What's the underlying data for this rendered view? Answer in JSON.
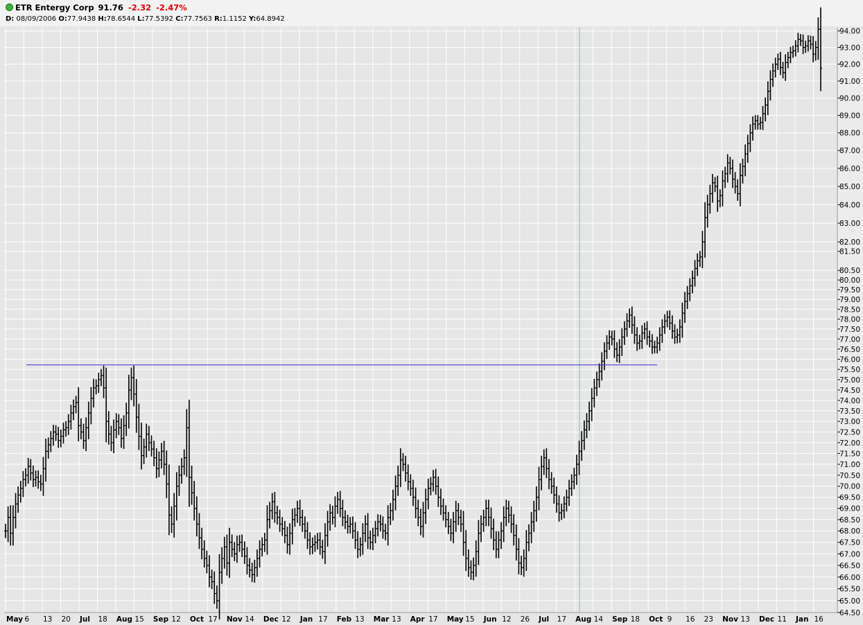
{
  "header": {
    "symbol_name": "ETR Entergy Corp",
    "last_price": "91.76",
    "change": "-2.32",
    "change_pct": "-2.47%",
    "ohlc": {
      "date_label": "D:",
      "date": "08/09/2006",
      "open_label": "O:",
      "open": "77.9438",
      "high_label": "H:",
      "high": "78.6544",
      "low_label": "L:",
      "low": "77.5392",
      "close_label": "C:",
      "close": "77.7563",
      "r_label": "R:",
      "r": "1.1152",
      "y_label": "Y:",
      "y": "64.8942"
    }
  },
  "colors": {
    "background": "#e6e6e6",
    "grid": "#ffffff",
    "candles": "#000000",
    "trendline": "#3b2ccc",
    "cursor_line": "#9bb0b0",
    "change_negative": "#e00000"
  },
  "chart_data": {
    "type": "line",
    "y_scale": "log",
    "ylim": [
      64.5,
      94.2
    ],
    "y_ticks": [
      "94.00",
      "93.00",
      "92.00",
      "91.00",
      "90.00",
      "89.00",
      "88.00",
      "87.00",
      "86.00",
      "85.00",
      "84.00",
      "83.00",
      "82.00",
      "81.50",
      "80.50",
      "80.00",
      "79.50",
      "79.00",
      "78.50",
      "78.00",
      "77.50",
      "77.00",
      "76.50",
      "76.00",
      "75.50",
      "75.00",
      "74.50",
      "74.00",
      "73.50",
      "73.00",
      "72.50",
      "72.00",
      "71.50",
      "71.00",
      "70.50",
      "70.00",
      "69.50",
      "69.00",
      "68.50",
      "68.00",
      "67.50",
      "67.00",
      "66.50",
      "66.00",
      "65.50",
      "65.00",
      "64.50"
    ],
    "x_labels": [
      {
        "t": "May",
        "bold": true
      },
      {
        "t": "6",
        "bold": false
      },
      {
        "t": "13",
        "bold": false
      },
      {
        "t": "20",
        "bold": false
      },
      {
        "t": "Jul",
        "bold": true
      },
      {
        "t": "18",
        "bold": false
      },
      {
        "t": "Aug",
        "bold": true
      },
      {
        "t": "15",
        "bold": false
      },
      {
        "t": "Sep",
        "bold": true
      },
      {
        "t": "12",
        "bold": false
      },
      {
        "t": "Oct",
        "bold": true
      },
      {
        "t": "17",
        "bold": false
      },
      {
        "t": "Nov",
        "bold": true
      },
      {
        "t": "14",
        "bold": false
      },
      {
        "t": "Dec",
        "bold": true
      },
      {
        "t": "12",
        "bold": false
      },
      {
        "t": "Jan",
        "bold": true
      },
      {
        "t": "17",
        "bold": false
      },
      {
        "t": "Feb",
        "bold": true
      },
      {
        "t": "13",
        "bold": false
      },
      {
        "t": "Mar",
        "bold": true
      },
      {
        "t": "13",
        "bold": false
      },
      {
        "t": "Apr",
        "bold": true
      },
      {
        "t": "17",
        "bold": false
      },
      {
        "t": "May",
        "bold": true
      },
      {
        "t": "15",
        "bold": false
      },
      {
        "t": "Jun",
        "bold": true
      },
      {
        "t": "12",
        "bold": false
      },
      {
        "t": "26",
        "bold": false
      },
      {
        "t": "Jul",
        "bold": true
      },
      {
        "t": "17",
        "bold": false
      },
      {
        "t": "Aug",
        "bold": true
      },
      {
        "t": "14",
        "bold": false
      },
      {
        "t": "Sep",
        "bold": true
      },
      {
        "t": "18",
        "bold": false
      },
      {
        "t": "Oct",
        "bold": true
      },
      {
        "t": "9",
        "bold": false
      },
      {
        "t": "16",
        "bold": false
      },
      {
        "t": "23",
        "bold": false
      },
      {
        "t": "Nov",
        "bold": true
      },
      {
        "t": "13",
        "bold": false
      },
      {
        "t": "Dec",
        "bold": true
      },
      {
        "t": "11",
        "bold": false
      },
      {
        "t": "Jan",
        "bold": true
      },
      {
        "t": "16",
        "bold": false
      }
    ],
    "series": [
      {
        "values": [
          68.0,
          68.6,
          67.9,
          68.6,
          69.2,
          69.6,
          69.9,
          70.3,
          70.5,
          70.9,
          70.6,
          70.3,
          70.4,
          70.2,
          70.1,
          70.8,
          71.6,
          71.9,
          72.2,
          72.5,
          72.4,
          72.1,
          72.3,
          72.6,
          72.7,
          73.0,
          73.4,
          73.7,
          73.9,
          72.8,
          72.5,
          72.1,
          72.7,
          73.4,
          74.1,
          74.6,
          74.7,
          75.0,
          75.2,
          74.6,
          73.0,
          72.4,
          72.0,
          72.6,
          73.0,
          72.7,
          72.2,
          72.8,
          73.4,
          74.5,
          75.1,
          74.3,
          73.2,
          72.3,
          71.4,
          71.8,
          72.4,
          72.0,
          71.7,
          71.3,
          70.8,
          71.2,
          71.6,
          71.0,
          70.1,
          68.7,
          68.3,
          69.1,
          70.0,
          70.5,
          70.9,
          71.3,
          72.7,
          70.4,
          69.7,
          69.0,
          68.3,
          67.7,
          67.2,
          66.8,
          66.5,
          66.0,
          65.8,
          65.3,
          65.0,
          66.2,
          66.8,
          67.3,
          66.6,
          67.5,
          67.2,
          67.0,
          67.4,
          67.5,
          67.2,
          66.9,
          66.5,
          66.3,
          66.1,
          66.4,
          66.8,
          67.2,
          67.4,
          67.6,
          68.5,
          68.9,
          69.3,
          68.8,
          68.6,
          68.3,
          68.1,
          67.8,
          67.4,
          67.9,
          68.5,
          68.7,
          69.0,
          68.6,
          68.3,
          68.0,
          67.6,
          67.3,
          67.4,
          67.5,
          67.6,
          67.3,
          67.1,
          67.8,
          68.4,
          68.8,
          68.6,
          69.1,
          69.4,
          69.0,
          68.6,
          68.4,
          68.2,
          68.3,
          68.0,
          67.6,
          67.2,
          67.4,
          67.9,
          68.3,
          67.7,
          67.5,
          67.8,
          68.1,
          68.4,
          68.3,
          68.0,
          67.9,
          68.6,
          68.9,
          69.4,
          70.0,
          70.5,
          71.2,
          71.0,
          70.6,
          70.2,
          69.9,
          69.5,
          69.0,
          68.6,
          68.2,
          68.8,
          69.4,
          69.9,
          70.1,
          70.4,
          70.0,
          69.5,
          69.1,
          68.8,
          68.5,
          68.2,
          67.9,
          68.4,
          68.9,
          68.6,
          68.3,
          67.5,
          66.8,
          66.4,
          66.2,
          66.5,
          67.1,
          67.9,
          68.3,
          68.6,
          69.0,
          68.6,
          68.1,
          67.6,
          67.2,
          67.6,
          68.0,
          68.6,
          69.0,
          68.7,
          68.3,
          67.8,
          67.2,
          66.6,
          66.4,
          66.8,
          67.5,
          67.9,
          68.4,
          68.9,
          69.5,
          70.3,
          70.9,
          71.3,
          70.8,
          70.3,
          70.0,
          69.6,
          69.2,
          68.8,
          68.9,
          69.2,
          69.5,
          69.9,
          70.2,
          70.5,
          71.0,
          71.6,
          72.1,
          72.6,
          73.0,
          73.5,
          74.1,
          74.6,
          75.0,
          75.4,
          75.9,
          76.4,
          76.8,
          77.1,
          77.0,
          76.5,
          76.2,
          76.6,
          77.1,
          77.5,
          77.9,
          78.2,
          77.7,
          77.2,
          76.8,
          76.9,
          77.3,
          77.5,
          77.1,
          76.9,
          76.6,
          76.6,
          76.8,
          77.2,
          77.6,
          77.9,
          78.1,
          77.8,
          77.4,
          77.1,
          77.2,
          77.6,
          78.3,
          78.9,
          79.3,
          79.7,
          80.1,
          80.6,
          81.0,
          81.2,
          82.0,
          83.3,
          84.0,
          84.6,
          85.2,
          85.0,
          84.2,
          84.5,
          85.3,
          85.7,
          86.3,
          86.0,
          85.4,
          85.0,
          84.6,
          85.6,
          86.1,
          86.8,
          87.4,
          88.0,
          88.5,
          88.7,
          88.5,
          88.6,
          89.1,
          89.6,
          90.4,
          91.1,
          91.6,
          92.0,
          92.3,
          91.8,
          91.5,
          92.1,
          92.4,
          92.7,
          92.8,
          93.1,
          93.5,
          93.4,
          93.0,
          93.1,
          93.4,
          93.2,
          92.6,
          93.0,
          94.1,
          91.76
        ]
      }
    ],
    "trendline": {
      "y": 75.72
    },
    "cursor_date": "08/09/2006"
  }
}
